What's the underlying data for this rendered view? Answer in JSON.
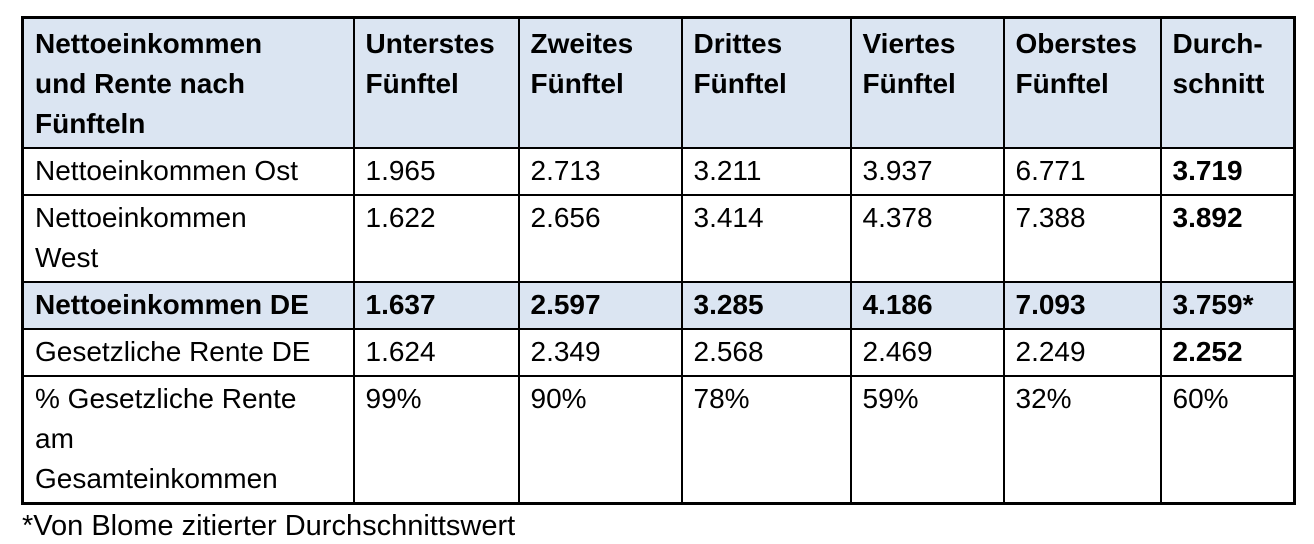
{
  "colors": {
    "header_bg": "#dbe5f2",
    "highlight_bg": "#dbe5f2",
    "border": "#000000",
    "text": "#000000"
  },
  "table": {
    "corner_label": "Nettoeinkommen\nund Rente nach\nFünfteln",
    "column_headers": [
      "Unterstes\nFünftel",
      "Zweites\nFünftel",
      "Drittes\nFünftel",
      "Viertes\nFünftel",
      "Oberstes\nFünftel",
      "Durch-\nschnitt"
    ],
    "rows": [
      {
        "label": "Nettoeinkommen Ost",
        "values": [
          "1.965",
          "2.713",
          "3.211",
          "3.937",
          "6.771",
          "3.719"
        ],
        "highlighted": false,
        "bold_row": false,
        "bold_average": true,
        "lines": 1
      },
      {
        "label": "Nettoeinkommen\nWest",
        "values": [
          "1.622",
          "2.656",
          "3.414",
          "4.378",
          "7.388",
          "3.892"
        ],
        "highlighted": false,
        "bold_row": false,
        "bold_average": true,
        "lines": 2
      },
      {
        "label": "Nettoeinkommen DE",
        "values": [
          "1.637",
          "2.597",
          "3.285",
          "4.186",
          "7.093",
          "3.759*"
        ],
        "highlighted": true,
        "bold_row": true,
        "bold_average": true,
        "lines": 1
      },
      {
        "label": "Gesetzliche Rente DE",
        "values": [
          "1.624",
          "2.349",
          "2.568",
          "2.469",
          "2.249",
          "2.252"
        ],
        "highlighted": false,
        "bold_row": false,
        "bold_average": true,
        "lines": 1
      },
      {
        "label": "% Gesetzliche Rente\nam\nGesamteinkommen",
        "values": [
          "99%",
          "90%",
          "78%",
          "59%",
          "32%",
          "60%"
        ],
        "highlighted": false,
        "bold_row": false,
        "bold_average": false,
        "lines": 3
      }
    ],
    "footnote": "*Von Blome zitierter Durchschnittswert"
  }
}
